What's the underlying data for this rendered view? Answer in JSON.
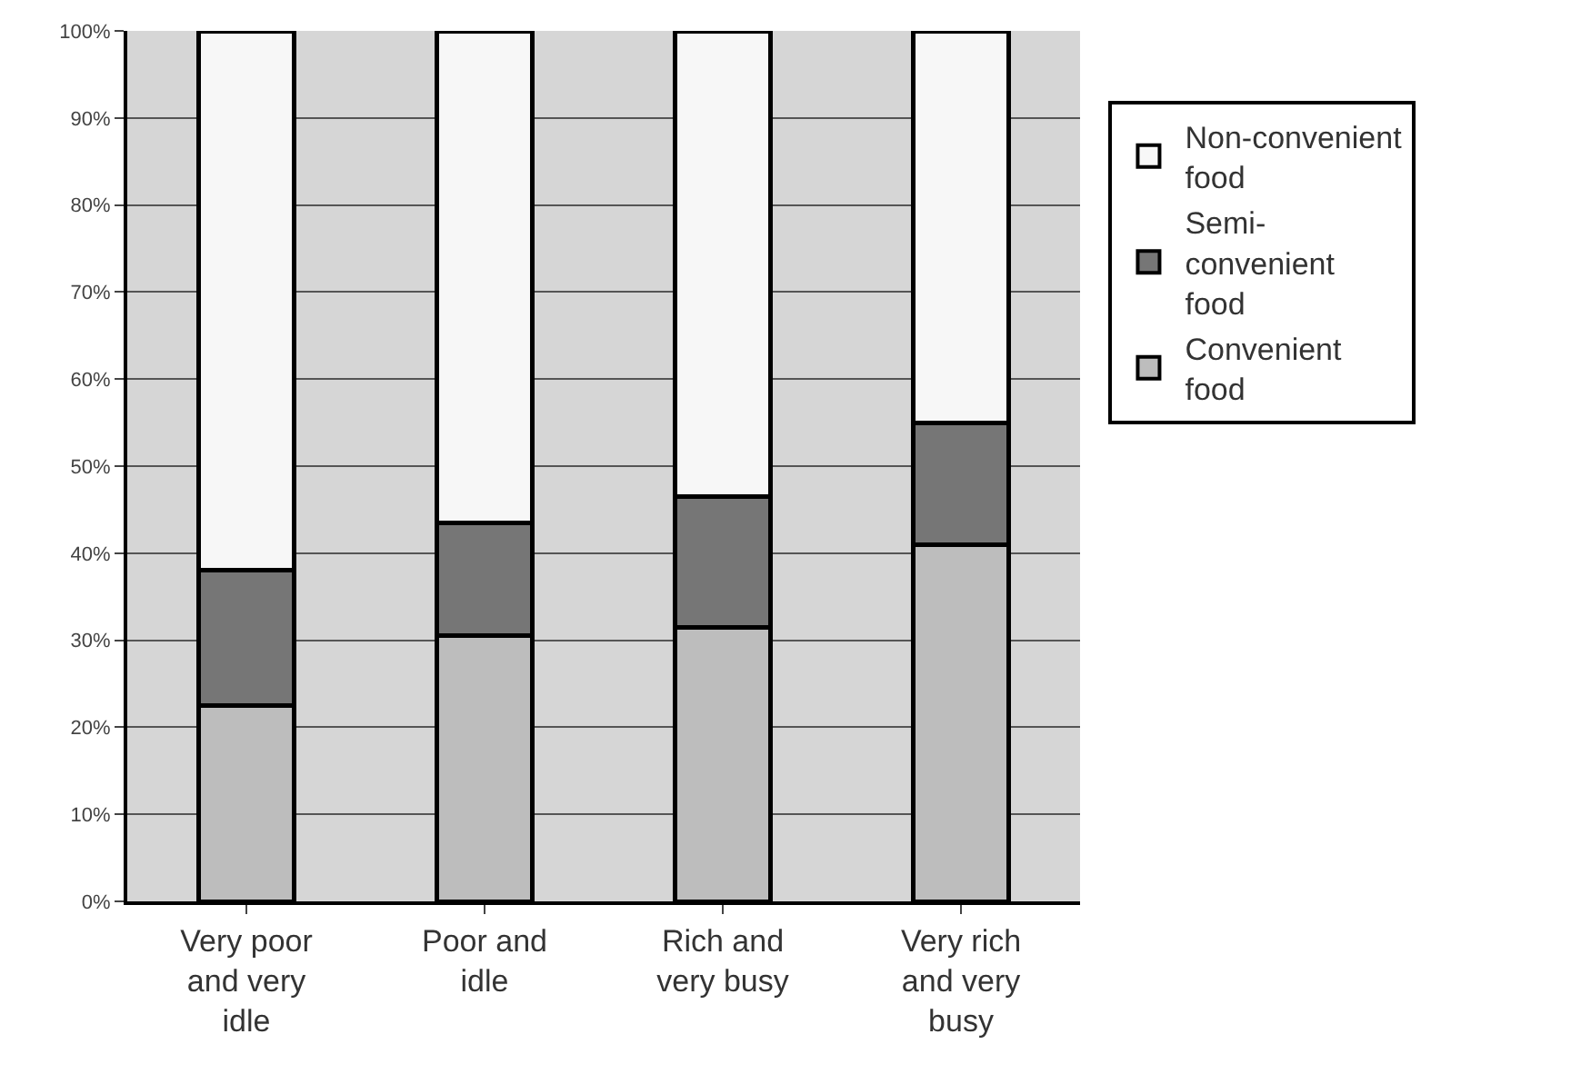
{
  "chart_data": {
    "type": "bar",
    "stacked": true,
    "categories": [
      "Very poor and very idle",
      "Poor and idle",
      "Rich and very busy",
      "Very rich and very busy"
    ],
    "series": [
      {
        "name": "Convenient food",
        "color": "#bdbdbd",
        "values": [
          22.5,
          30.5,
          31.5,
          41
        ]
      },
      {
        "name": "Semi-convenient food",
        "color": "#767676",
        "values": [
          15.5,
          13,
          15,
          14
        ]
      },
      {
        "name": "Non-convenient food",
        "color": "#f7f7f7",
        "values": [
          62,
          56.5,
          53.5,
          45
        ]
      }
    ],
    "ylim": [
      0,
      100
    ],
    "yticks": [
      {
        "value": 0,
        "label": "0%"
      },
      {
        "value": 10,
        "label": "10%"
      },
      {
        "value": 20,
        "label": "20%"
      },
      {
        "value": 30,
        "label": "30%"
      },
      {
        "value": 40,
        "label": "40%"
      },
      {
        "value": 50,
        "label": "50%"
      },
      {
        "value": 60,
        "label": "60%"
      },
      {
        "value": 70,
        "label": "70%"
      },
      {
        "value": 80,
        "label": "80%"
      },
      {
        "value": 90,
        "label": "90%"
      },
      {
        "value": 100,
        "label": "100%"
      }
    ],
    "grid": "y",
    "legend": "right"
  }
}
